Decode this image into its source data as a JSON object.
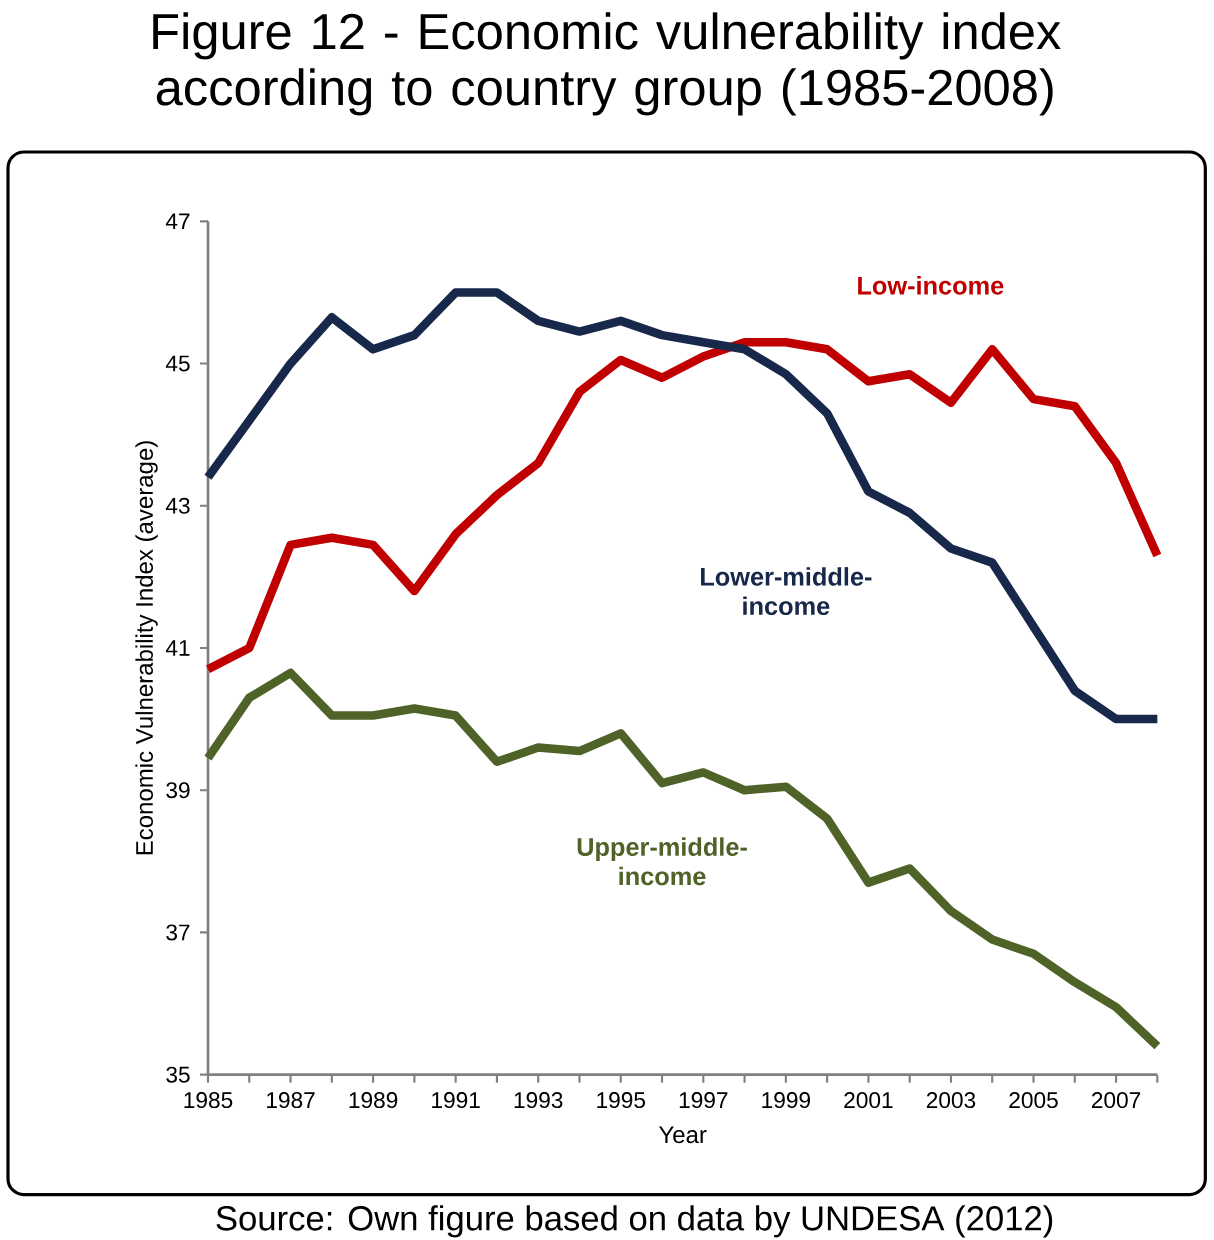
{
  "chart_data": {
    "type": "line",
    "title": "Figure 12 - Economic vulnerability index according to country group (1985-2008)",
    "xlabel": "Year",
    "ylabel": "Economic Vulnerability Index (average)",
    "x": [
      1985,
      1986,
      1987,
      1988,
      1989,
      1990,
      1991,
      1992,
      1993,
      1994,
      1995,
      1996,
      1997,
      1998,
      1999,
      2000,
      2001,
      2002,
      2003,
      2004,
      2005,
      2006,
      2007,
      2008
    ],
    "series": [
      {
        "name": "Low-income",
        "color": "#c00000",
        "values": [
          40.7,
          41.0,
          42.45,
          42.55,
          42.45,
          41.8,
          42.6,
          43.15,
          43.6,
          44.6,
          45.05,
          44.8,
          45.1,
          45.3,
          45.3,
          45.2,
          44.75,
          44.85,
          44.45,
          45.2,
          44.5,
          44.4,
          43.6,
          42.3
        ]
      },
      {
        "name": "Lower-middle-income",
        "color": "#17284a",
        "values": [
          43.4,
          44.2,
          45.0,
          45.65,
          45.2,
          45.4,
          46.0,
          46.0,
          45.6,
          45.45,
          45.6,
          45.4,
          45.3,
          45.2,
          44.85,
          44.3,
          43.2,
          42.9,
          42.4,
          42.2,
          41.3,
          40.4,
          40.0,
          40.0
        ]
      },
      {
        "name": "Upper-middle-income",
        "color": "#4f6228",
        "values": [
          39.45,
          40.3,
          40.65,
          40.05,
          40.05,
          40.15,
          40.05,
          39.4,
          39.6,
          39.55,
          39.8,
          39.1,
          39.25,
          39.0,
          39.05,
          38.6,
          37.7,
          37.9,
          37.3,
          36.9,
          36.7,
          36.3,
          35.95,
          35.4
        ]
      }
    ],
    "xlim": [
      1985,
      2008
    ],
    "ylim": [
      35,
      47
    ],
    "xticks": [
      1985,
      {
        "value": 1986,
        "label": null
      },
      1987,
      {
        "value": 1988,
        "label": null
      },
      1989,
      {
        "value": 1990,
        "label": null
      },
      1991,
      {
        "value": 1992,
        "label": null
      },
      1993,
      {
        "value": 1994,
        "label": null
      },
      1995,
      {
        "value": 1996,
        "label": null
      },
      1997,
      {
        "value": 1998,
        "label": null
      },
      1999,
      {
        "value": 2000,
        "label": null
      },
      2001,
      {
        "value": 2002,
        "label": null
      },
      2003,
      {
        "value": 2004,
        "label": null
      },
      2005,
      {
        "value": 2006,
        "label": null
      },
      2007,
      {
        "value": 2008,
        "label": null
      }
    ],
    "yticks": [
      35,
      37,
      39,
      41,
      43,
      45,
      47
    ],
    "grid": false,
    "legend": false,
    "marker": "none",
    "line_style": "solid",
    "annotations": [
      "Source: Own figure based on data by UNDESA (2012)"
    ]
  }
}
